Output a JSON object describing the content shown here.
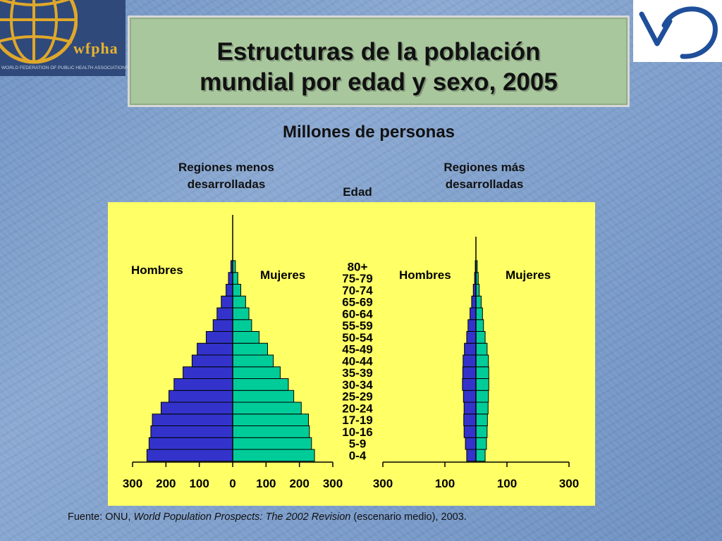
{
  "title": "Estructuras de la población mundial por edad y sexo, 2005",
  "title_lines": [
    "Estructuras de la población",
    "mundial por edad y sexo, 2005"
  ],
  "logo_left": {
    "name": "wfpha",
    "caption": "WORLD FEDERATION OF PUBLIC HEALTH ASSOCIATIONS"
  },
  "subtitle": "Millones de personas",
  "left_region_lines": [
    "Regiones menos",
    "desarrolladas"
  ],
  "right_region_lines": [
    "Regiones más",
    "desarrolladas"
  ],
  "age_axis_label": "Edad",
  "source": {
    "prefix": "Fuente: ONU, ",
    "title": "World Population Prospects: The 2002 Revision",
    "suffix": " (escenario medio), 2003."
  },
  "colors": {
    "men": "#3333cc",
    "women": "#00cc99",
    "plot_bg": "#ffff66",
    "title_bg": "#a9c79d"
  },
  "chart_data": [
    {
      "type": "bar",
      "orientation": "population-pyramid",
      "panel": "Regiones menos desarrolladas",
      "unit": "Millones de personas",
      "categories": [
        "0-4",
        "5-9",
        "10-16",
        "17-19",
        "20-24",
        "25-29",
        "30-34",
        "35-39",
        "40-44",
        "45-49",
        "50-54",
        "55-59",
        "60-64",
        "65-69",
        "70-74",
        "75-79",
        "80+"
      ],
      "series": [
        {
          "name": "Hombres",
          "values": [
            285,
            278,
            272,
            267,
            238,
            212,
            195,
            165,
            135,
            118,
            88,
            65,
            52,
            38,
            22,
            14,
            6
          ]
        },
        {
          "name": "Mujeres",
          "values": [
            272,
            262,
            255,
            252,
            228,
            203,
            185,
            158,
            135,
            116,
            88,
            63,
            54,
            43,
            27,
            17,
            9
          ]
        }
      ],
      "xlim": [
        -300,
        300
      ],
      "xticks": [
        "300",
        "200",
        "100",
        "0",
        "100",
        "200",
        "300"
      ],
      "labels": {
        "men": "Hombres",
        "women": "Mujeres"
      }
    },
    {
      "type": "bar",
      "orientation": "population-pyramid",
      "panel": "Regiones más desarrolladas",
      "unit": "Millones de personas",
      "categories": [
        "0-4",
        "5-9",
        "10-16",
        "17-19",
        "20-24",
        "25-29",
        "30-34",
        "35-39",
        "40-44",
        "45-49",
        "50-54",
        "55-59",
        "60-64",
        "65-69",
        "70-74",
        "75-79",
        "80+"
      ],
      "series": [
        {
          "name": "Hombres",
          "values": [
            28,
            32,
            36,
            37,
            36,
            38,
            41,
            40,
            39,
            35,
            28,
            24,
            18,
            13,
            8,
            4,
            2
          ]
        },
        {
          "name": "Mujeres",
          "values": [
            28,
            32,
            34,
            35,
            37,
            38,
            39,
            39,
            38,
            34,
            28,
            23,
            20,
            16,
            10,
            7,
            4
          ]
        }
      ],
      "xlim": [
        -300,
        300
      ],
      "xticks": [
        "300",
        "100",
        "100",
        "300"
      ],
      "labels": {
        "men": "Hombres",
        "women": "Mujeres"
      }
    }
  ]
}
